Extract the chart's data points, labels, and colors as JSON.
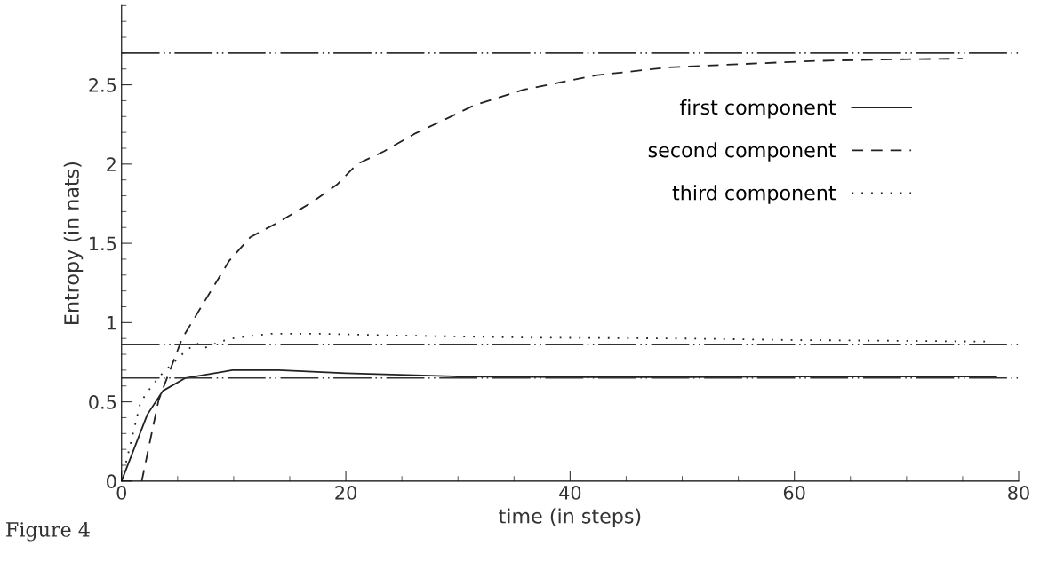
{
  "chart_data": {
    "type": "line",
    "xlabel": "time (in steps)",
    "ylabel": "Entropy (in nats)",
    "xlim": [
      0,
      80
    ],
    "xticks": [
      0,
      20,
      40,
      60,
      80
    ],
    "ylim": [
      0,
      3
    ],
    "yticks": [
      0,
      0.5,
      1,
      1.5,
      2,
      2.5
    ],
    "series": [
      {
        "name": "first component",
        "color": "#222222",
        "line_style": "solid",
        "x": [
          0,
          2.3,
          3.7,
          5.7,
          9.9,
          14,
          20,
          30,
          40,
          50,
          60,
          70,
          78
        ],
        "values": [
          0,
          0.42,
          0.57,
          0.65,
          0.7,
          0.7,
          0.68,
          0.66,
          0.655,
          0.655,
          0.66,
          0.66,
          0.66
        ]
      },
      {
        "name": "second component",
        "color": "#222222",
        "line_style": "dashed",
        "x": [
          1.8,
          3.3,
          5.4,
          9.6,
          11.5,
          13.9,
          17,
          19.2,
          21,
          23.4,
          26.1,
          28.8,
          31.4,
          35.9,
          42.3,
          48.7,
          55,
          61.4,
          67.8,
          75
        ],
        "values": [
          0,
          0.51,
          0.9,
          1.39,
          1.54,
          1.63,
          1.76,
          1.87,
          2.0,
          2.08,
          2.19,
          2.28,
          2.37,
          2.47,
          2.56,
          2.61,
          2.63,
          2.65,
          2.66,
          2.665
        ]
      },
      {
        "name": "third component",
        "color": "#222222",
        "line_style": "dotted",
        "x": [
          0,
          1.7,
          2.6,
          3.5,
          5.7,
          6.7,
          7.4,
          8.8,
          10.2,
          13.4,
          17.8,
          23.4,
          36.7,
          50,
          60,
          70,
          77.4
        ],
        "values": [
          0,
          0.5,
          0.59,
          0.67,
          0.82,
          0.87,
          0.84,
          0.88,
          0.905,
          0.93,
          0.93,
          0.92,
          0.905,
          0.9,
          0.89,
          0.885,
          0.88
        ]
      }
    ],
    "ref_lines": [
      {
        "axis": "y",
        "value": 2.7,
        "color": "#333333",
        "line_style": "dashdot"
      },
      {
        "axis": "y",
        "value": 0.86,
        "color": "#333333",
        "line_style": "dashdot"
      },
      {
        "axis": "y",
        "value": 0.65,
        "color": "#333333",
        "line_style": "dashdot"
      }
    ],
    "annotations": [
      "Figure 4"
    ],
    "legend": "top right",
    "grid": false,
    "marker": "none"
  }
}
